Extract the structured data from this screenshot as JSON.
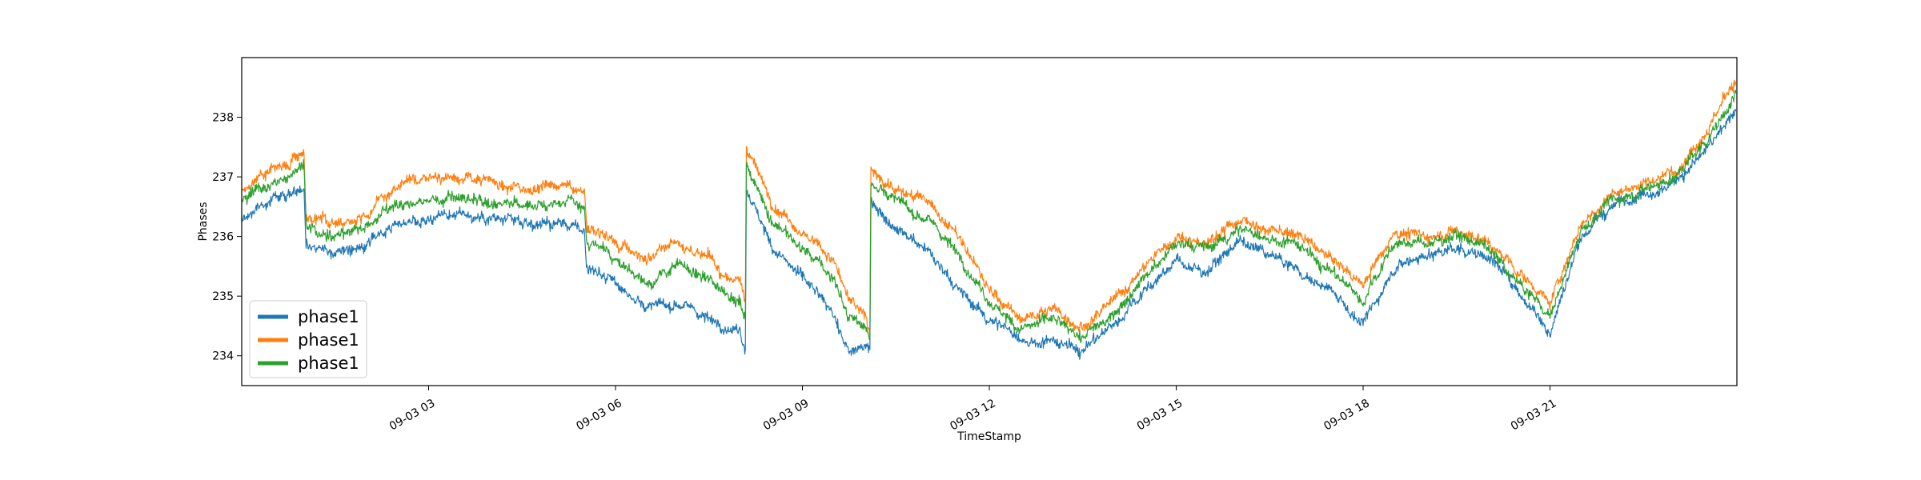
{
  "chart_data": {
    "type": "line",
    "title": "",
    "xlabel": "TimeStamp",
    "ylabel": "Phases",
    "xlim": [
      "2023-09-03 00:00",
      "2023-09-04 00:00"
    ],
    "ylim": [
      233.5,
      239.0
    ],
    "x_ticks": [
      "09-03 03",
      "09-03 06",
      "09-03 09",
      "09-03 12",
      "09-03 15",
      "09-03 18",
      "09-03 21"
    ],
    "y_ticks": [
      234,
      235,
      236,
      237,
      238
    ],
    "grid": false,
    "legend_position": "lower-left",
    "x": [
      "00:00",
      "00:30",
      "01:00",
      "01:02",
      "01:30",
      "02:00",
      "02:30",
      "03:00",
      "03:30",
      "04:00",
      "04:30",
      "05:00",
      "05:30",
      "05:32",
      "06:00",
      "06:30",
      "07:00",
      "07:30",
      "08:00",
      "08:05",
      "08:06",
      "08:30",
      "09:00",
      "09:30",
      "09:45",
      "10:00",
      "10:05",
      "10:06",
      "10:30",
      "11:00",
      "11:30",
      "12:00",
      "12:30",
      "13:00",
      "13:30",
      "14:00",
      "14:30",
      "15:00",
      "15:30",
      "16:00",
      "16:30",
      "17:00",
      "17:30",
      "18:00",
      "18:30",
      "19:00",
      "19:30",
      "20:00",
      "20:30",
      "21:00",
      "21:30",
      "22:00",
      "22:30",
      "23:00",
      "23:30",
      "23:59"
    ],
    "series": [
      {
        "name": "phase1",
        "color": "#1f77b4",
        "values": [
          236.3,
          236.6,
          236.8,
          235.9,
          235.7,
          235.8,
          236.2,
          236.3,
          236.4,
          236.3,
          236.2,
          236.2,
          236.1,
          235.5,
          235.2,
          234.8,
          234.9,
          234.6,
          234.4,
          234.1,
          236.8,
          235.9,
          235.3,
          234.7,
          234.0,
          234.2,
          234.1,
          236.6,
          236.1,
          235.8,
          235.1,
          234.6,
          234.3,
          234.2,
          234.1,
          234.5,
          235.1,
          235.6,
          235.4,
          235.9,
          235.7,
          235.4,
          235.1,
          234.5,
          235.5,
          235.7,
          235.8,
          235.7,
          235.1,
          234.4,
          236.0,
          236.5,
          236.8,
          236.9,
          237.4,
          238.1
        ]
      },
      {
        "name": "phase1",
        "color": "#ff7f0e",
        "values": [
          236.8,
          237.1,
          237.4,
          236.3,
          236.2,
          236.4,
          236.8,
          237.0,
          237.0,
          236.9,
          236.8,
          236.9,
          236.8,
          236.2,
          235.9,
          235.6,
          235.9,
          235.6,
          235.2,
          234.9,
          237.5,
          236.6,
          236.1,
          235.6,
          234.9,
          234.7,
          234.4,
          237.1,
          236.8,
          236.6,
          236.0,
          235.1,
          234.6,
          234.8,
          234.5,
          234.9,
          235.5,
          236.0,
          235.9,
          236.3,
          236.1,
          236.0,
          235.6,
          235.2,
          236.1,
          236.0,
          236.1,
          235.9,
          235.4,
          234.9,
          236.2,
          236.7,
          236.9,
          237.1,
          237.8,
          238.6
        ]
      },
      {
        "name": "phase1",
        "color": "#2ca02c",
        "values": [
          236.6,
          236.9,
          237.2,
          236.2,
          236.0,
          236.2,
          236.5,
          236.6,
          236.7,
          236.6,
          236.5,
          236.6,
          236.5,
          235.9,
          235.6,
          235.2,
          235.5,
          235.3,
          234.9,
          234.6,
          237.2,
          236.3,
          235.8,
          235.3,
          234.6,
          234.5,
          234.3,
          236.9,
          236.6,
          236.3,
          235.7,
          234.9,
          234.5,
          234.6,
          234.3,
          234.7,
          235.3,
          235.9,
          235.8,
          236.1,
          236.0,
          235.8,
          235.4,
          234.9,
          235.9,
          235.9,
          236.0,
          235.8,
          235.2,
          234.7,
          236.1,
          236.6,
          236.8,
          237.0,
          237.6,
          238.4
        ]
      }
    ]
  }
}
